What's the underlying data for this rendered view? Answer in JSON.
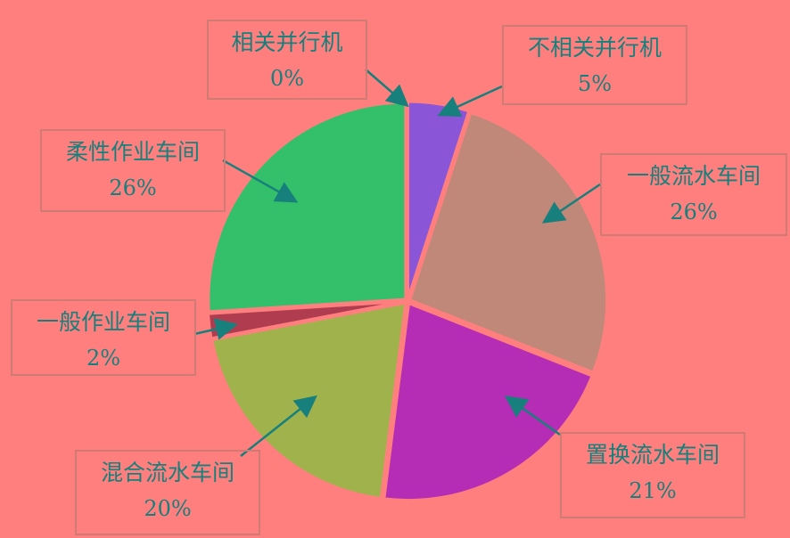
{
  "chart_data": {
    "type": "pie",
    "title": "",
    "background": "#ff7f7f",
    "label_color": "#17807c",
    "slices": [
      {
        "label": "相关并行机",
        "value": 0,
        "pct_label": "0%",
        "color": "#8a55d6"
      },
      {
        "label": "不相关并行机",
        "value": 5,
        "pct_label": "5%",
        "color": "#8a55d6"
      },
      {
        "label": "一般流水车间",
        "value": 26,
        "pct_label": "26%",
        "color": "#c08878"
      },
      {
        "label": "置换流水车间",
        "value": 21,
        "pct_label": "21%",
        "color": "#b42db4"
      },
      {
        "label": "混合流水车间",
        "value": 20,
        "pct_label": "20%",
        "color": "#a0b24c"
      },
      {
        "label": "一般作业车间",
        "value": 2,
        "pct_label": "2%",
        "color": "#b03c50"
      },
      {
        "label": "柔性作业车间",
        "value": 26,
        "pct_label": "26%",
        "color": "#34c06a"
      }
    ]
  }
}
